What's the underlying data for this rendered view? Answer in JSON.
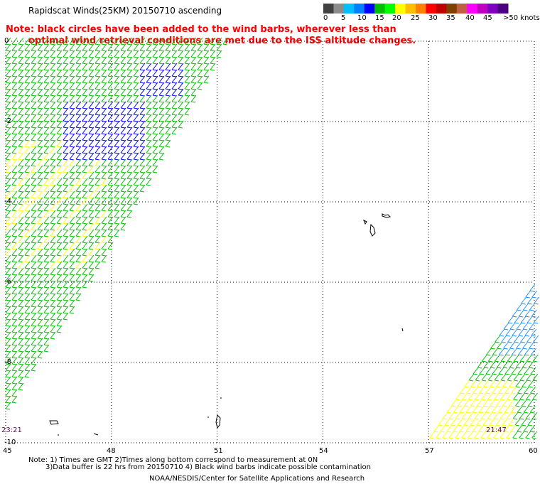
{
  "title": "Rapidscat Winds(25KM) 20150710 ascending",
  "note_line1": "Note: black circles have been added to the wind barbs, wherever less than",
  "note_line2": "optimal wind retrieval conditions are met due to the ISS altitude changes.",
  "colorbar": {
    "colors": [
      "#404040",
      "#8c8c8c",
      "#00bfff",
      "#0080ff",
      "#0000ff",
      "#00bf00",
      "#00ff00",
      "#ffff00",
      "#ffbf00",
      "#ff8000",
      "#ff0000",
      "#c00000",
      "#804000",
      "#c06040",
      "#ff00ff",
      "#c000c0",
      "#8000c0",
      "#4b0082"
    ],
    "labels": [
      "0",
      "5",
      "10",
      "15",
      "20",
      "25",
      "30",
      "35",
      "40",
      "45",
      ">50 knots"
    ]
  },
  "footer": {
    "line1": "Note: 1) Times are GMT 2)Times along bottom correspond to measurement at 0N",
    "line2": "3)Data buffer is 22 hrs from 20150710 4) Black wind barbs indicate possible contamination",
    "line3": "NOAA/NESDIS/Center for Satellite Applications and Research"
  },
  "chart_data": {
    "type": "map",
    "x_ticks": [
      "45",
      "48",
      "51",
      "54",
      "57",
      "60"
    ],
    "y_ticks": [
      "0",
      "-2",
      "-4",
      "-6",
      "-8",
      "-10"
    ],
    "xlim": [
      45,
      60
    ],
    "ylim": [
      -10,
      0
    ],
    "pass_times": [
      "23:21",
      "21:47"
    ]
  }
}
